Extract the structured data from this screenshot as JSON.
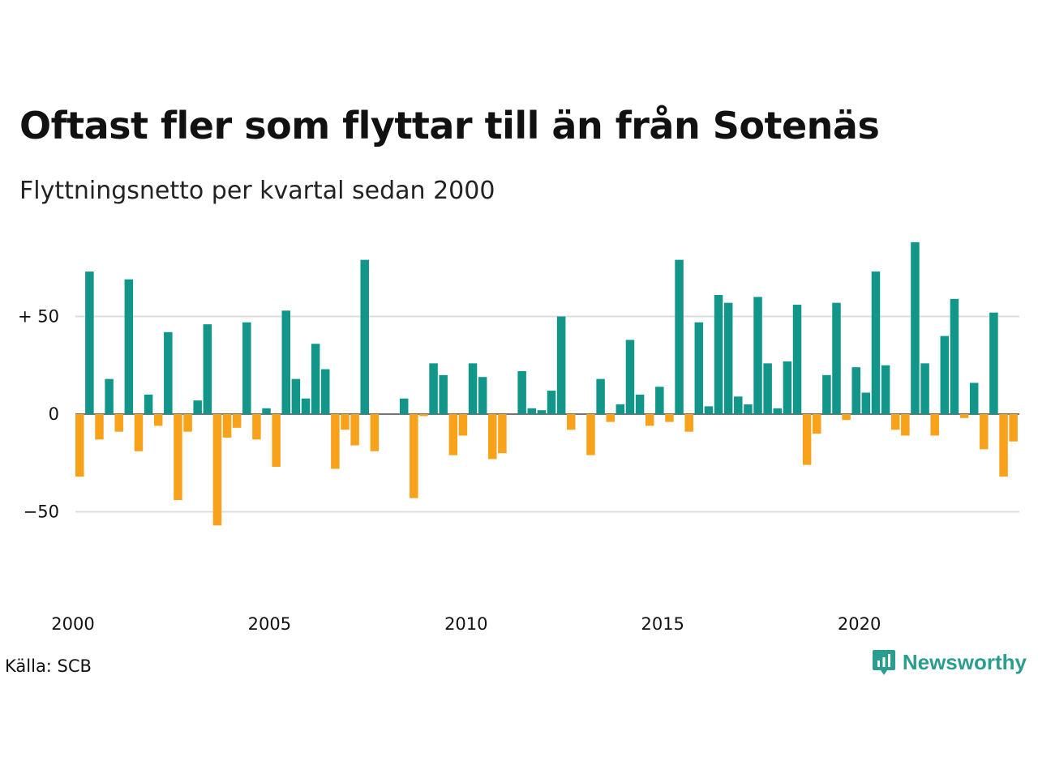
{
  "header": {
    "title": "Oftast fler som flyttar till än från Sotenäs",
    "subtitle": "Flyttningsnetto per kvartal sedan 2000"
  },
  "footer": {
    "source": "Källa: SCB",
    "brand": "Newsworthy"
  },
  "colors": {
    "positive": "#12968a",
    "negative": "#f8a21b",
    "grid": "#dddddd",
    "brand": "#2a9d8f"
  },
  "chart_data": {
    "type": "bar",
    "title": "Oftast fler som flyttar till än från Sotenäs",
    "subtitle": "Flyttningsnetto per kvartal sedan 2000",
    "xlabel": "",
    "ylabel": "",
    "ylim": [
      -80,
      90
    ],
    "y_ticks": [
      {
        "value": 50,
        "label": "+ 50"
      },
      {
        "value": 0,
        "label": "0"
      },
      {
        "value": -50,
        "label": "−50"
      }
    ],
    "x_ticks": [
      "2000",
      "2005",
      "2010",
      "2015",
      "2020"
    ],
    "grid": true,
    "start_year": 2000,
    "quarters_per_year": 4,
    "values": [
      -32,
      73,
      -13,
      18,
      -9,
      69,
      -19,
      10,
      -6,
      42,
      -44,
      -9,
      7,
      46,
      -57,
      -12,
      -7,
      47,
      -13,
      3,
      -27,
      53,
      18,
      8,
      36,
      23,
      -28,
      -8,
      -16,
      79,
      -19,
      0,
      0,
      8,
      -43,
      -1,
      26,
      20,
      -21,
      -11,
      26,
      19,
      -23,
      -20,
      0,
      22,
      3,
      2,
      12,
      50,
      -8,
      0,
      -21,
      18,
      -4,
      5,
      38,
      10,
      -6,
      14,
      -4,
      79,
      -9,
      47,
      4,
      61,
      57,
      9,
      5,
      60,
      26,
      3,
      27,
      56,
      -26,
      -10,
      20,
      57,
      -3,
      24,
      11,
      73,
      25,
      -8,
      -11,
      88,
      26,
      -11,
      40,
      59,
      -2,
      16,
      -18,
      52,
      -32,
      -14
    ]
  }
}
